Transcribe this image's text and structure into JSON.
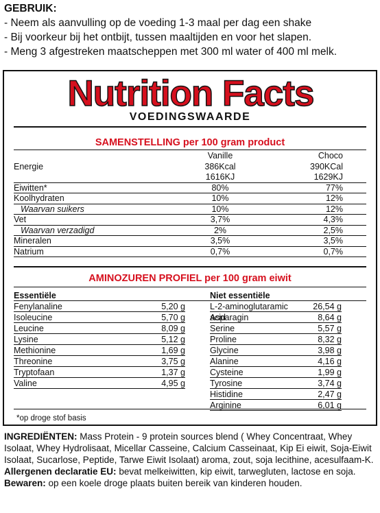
{
  "usage": {
    "heading": "GEBRUIK:",
    "lines": [
      "- Neem als aanvulling op de voeding 1-3 maal per dag een shake",
      "- Bij voorkeur bij het ontbijt, tussen maaltijden en voor het slapen.",
      "- Meng 3 afgestreken maatscheppen met 300 ml water of 400 ml melk."
    ]
  },
  "panel": {
    "title": "Nutrition Facts",
    "subtitle": "VOEDINGSWAARDE",
    "composition": {
      "title": "SAMENSTELLING per 100 gram product",
      "col_vanille": "Vanille",
      "col_choco": "Choco",
      "rows": [
        {
          "label": "Energie",
          "vanille": "386Kcal",
          "choco": "390KCal",
          "sub": false
        },
        {
          "label": "",
          "vanille": "1616KJ",
          "choco": "1629KJ",
          "sub": false
        },
        {
          "label": "Eiwitten*",
          "vanille": "80%",
          "choco": "77%",
          "sub": false
        },
        {
          "label": "Koolhydraten",
          "vanille": "10%",
          "choco": "12%",
          "sub": false
        },
        {
          "label": "Waarvan suikers",
          "vanille": "10%",
          "choco": "12%",
          "sub": true
        },
        {
          "label": "Vet",
          "vanille": "3,7%",
          "choco": "4,3%",
          "sub": false
        },
        {
          "label": "Waarvan verzadigd",
          "vanille": "2%",
          "choco": "2,5%",
          "sub": true
        },
        {
          "label": "Mineralen",
          "vanille": "3,5%",
          "choco": "3,5%",
          "sub": false
        },
        {
          "label": "Natrium",
          "vanille": "0,7%",
          "choco": "0,7%",
          "sub": false
        }
      ]
    },
    "amino": {
      "title": "AMINOZUREN PROFIEL per 100 gram eiwit",
      "essential_header": "Essentiële",
      "nonessential_header": "Niet essentiële",
      "essential": [
        {
          "name": "Fenylanaline",
          "value": "5,20 g"
        },
        {
          "name": "Isoleucine",
          "value": "5,70 g"
        },
        {
          "name": "Leucine",
          "value": "8,09 g"
        },
        {
          "name": "Lysine",
          "value": "5,12 g"
        },
        {
          "name": "Methionine",
          "value": "1,69 g"
        },
        {
          "name": "Threonine",
          "value": "3,75 g"
        },
        {
          "name": "Tryptofaan",
          "value": "1,37 g"
        },
        {
          "name": "Valine",
          "value": "4,95 g"
        }
      ],
      "nonessential": [
        {
          "name": "L-2-aminoglutaramic acid",
          "value": "26,54 g"
        },
        {
          "name": "Asparagin",
          "value": "8,64 g"
        },
        {
          "name": "Serine",
          "value": "5,57 g"
        },
        {
          "name": "Proline",
          "value": "8,32 g"
        },
        {
          "name": "Glycine",
          "value": "3,98 g"
        },
        {
          "name": "Alanine",
          "value": "4,16 g"
        },
        {
          "name": "Cysteine",
          "value": "1,99 g"
        },
        {
          "name": "Tyrosine",
          "value": "3,74 g"
        },
        {
          "name": "Histidine",
          "value": "2,47 g"
        },
        {
          "name": "Arginine",
          "value": "6,01 g"
        }
      ]
    },
    "footnote": "*op droge stof basis"
  },
  "ingredients": {
    "label": "INGREDIËNTEN:",
    "text": " Mass Protein - 9 protein sources blend ( Whey Concentraat, Whey Isolaat, Whey Hydrolisaat, Micellar Casseine, Calcium Casseinaat, Kip Ei eiwit, Soja-Eiwit Isolaat, Sucarlose, Peptide, Tarwe Eiwit Isolaat) aroma, zout, soja lecithine, acesulfaam-K.",
    "allergen_label": "Allergenen declaratie EU:",
    "allergen_text": " bevat melkeiwitten, kip eiwit, tarwegluten, lactose en soja.",
    "storage_label": "Bewaren:",
    "storage_text": " op een koele droge plaats buiten bereik van kinderen houden."
  },
  "colors": {
    "accent_red": "#d6101e",
    "text": "#111111"
  }
}
